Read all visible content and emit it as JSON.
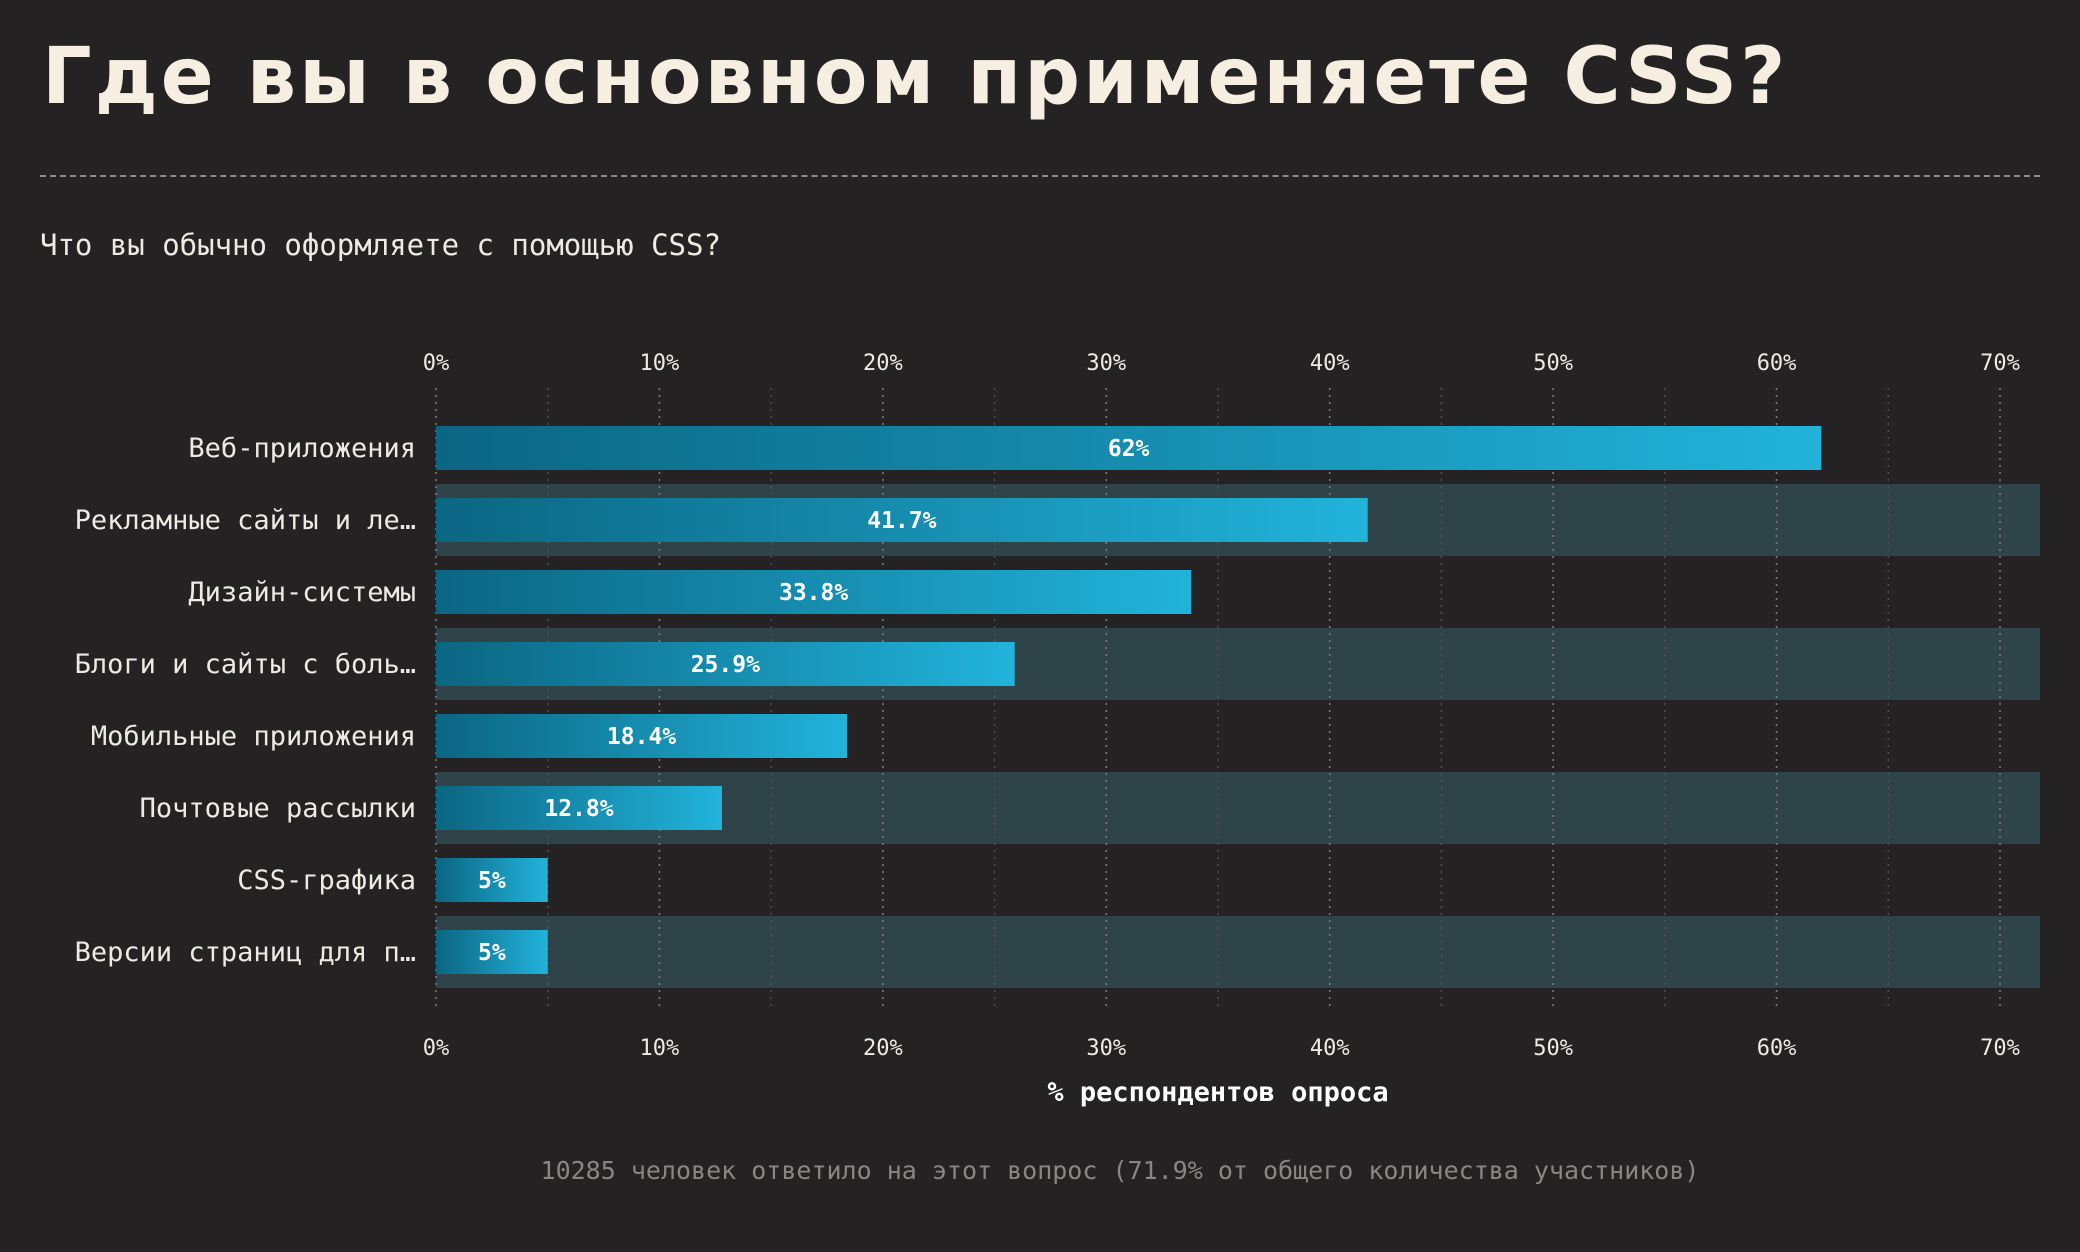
{
  "page": {
    "title": "Где вы в основном применяете CSS?",
    "question": "Что вы обычно оформляете с помощью CSS?",
    "footnote": "10285 человек ответило на этот вопрос (71.9% от общего количества участников)"
  },
  "colors": {
    "background": "#252223",
    "bar_start": "#0b6683",
    "bar_end": "#22b3db",
    "row_band": "#2f4448",
    "grid": "#6b6b6b"
  },
  "chart_data": {
    "type": "bar",
    "orientation": "horizontal",
    "categories": [
      "Веб-приложения",
      "Рекламные сайты и ле…",
      "Дизайн-системы",
      "Блоги и сайты с боль…",
      "Мобильные приложения",
      "Почтовые рассылки",
      "CSS-графика",
      "Версии страниц для п…"
    ],
    "values": [
      62,
      41.7,
      33.8,
      25.9,
      18.4,
      12.8,
      5,
      5
    ],
    "value_labels": [
      "62%",
      "41.7%",
      "33.8%",
      "25.9%",
      "18.4%",
      "12.8%",
      "5%",
      "5%"
    ],
    "xticks": [
      "0%",
      "10%",
      "20%",
      "30%",
      "40%",
      "50%",
      "60%",
      "70%"
    ],
    "xlim": [
      0,
      72
    ],
    "xlabel": "% респондентов опроса",
    "grid": true,
    "alternating_row_bands": true
  }
}
